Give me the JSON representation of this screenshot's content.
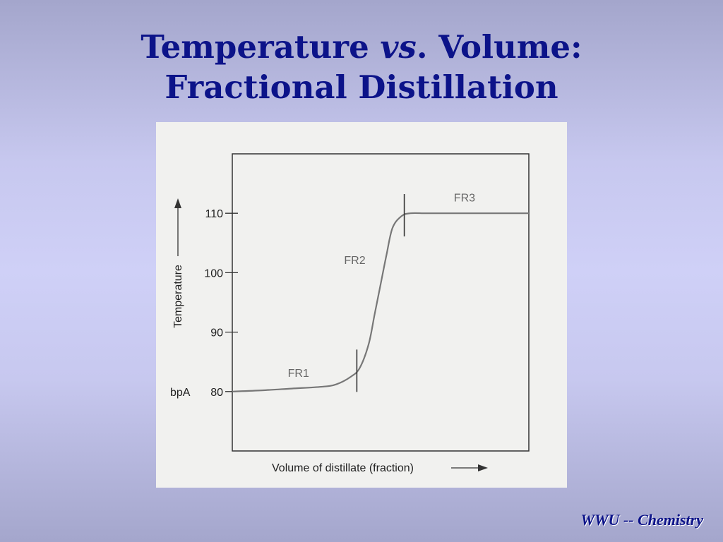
{
  "slide": {
    "title_part1": "Temperature ",
    "title_italic": "vs",
    "title_part2": ". Volume:",
    "title_line2": "Fractional Distillation",
    "footer": "WWU -- Chemistry"
  },
  "chart_data": {
    "type": "line",
    "title": "",
    "xlabel": "Volume of distillate (fraction)",
    "ylabel": "Temperature",
    "ylim": [
      70,
      120
    ],
    "xlim": [
      0,
      1
    ],
    "y_ticks": [
      80,
      90,
      100,
      110
    ],
    "y_tick_labels": [
      "80",
      "90",
      "100",
      "110"
    ],
    "y_annotation": "bpA",
    "grid": false,
    "series": [
      {
        "x": [
          0,
          0.1,
          0.2,
          0.3,
          0.35,
          0.4,
          0.43,
          0.46,
          0.48,
          0.5,
          0.52,
          0.54,
          0.57,
          0.6,
          0.65,
          0.7,
          0.8,
          0.9,
          1.0
        ],
        "y": [
          80,
          80.2,
          80.5,
          80.8,
          81.2,
          82.5,
          84,
          88,
          93,
          98,
          103,
          107.5,
          109.5,
          110,
          110,
          110,
          110,
          110,
          110
        ]
      }
    ],
    "fraction_labels": [
      "FR1",
      "FR2",
      "FR3"
    ],
    "fraction_cuts": [
      0.42,
      0.58
    ]
  }
}
